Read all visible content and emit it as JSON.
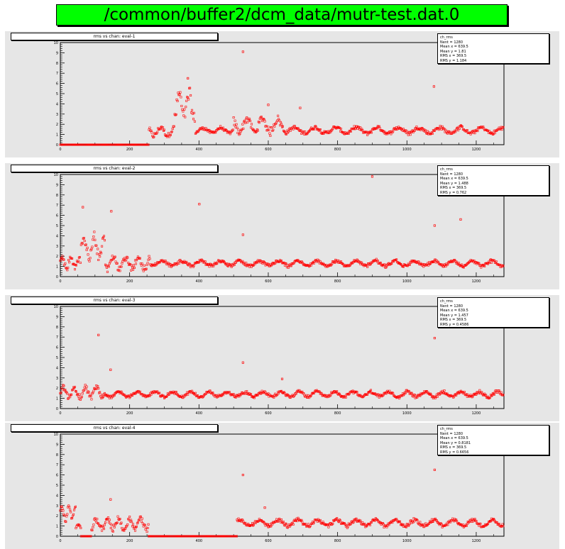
{
  "window": {
    "title": "/common/buffer2/dcm_data/mutr-test.dat.0"
  },
  "colors": {
    "title_bg": "#00ff00",
    "pad_bg": "#e6e6e6",
    "marker": "#ff0000"
  },
  "chart_data": [
    {
      "type": "scatter",
      "title": "rms vs chan: eval-1",
      "stats": [
        "ch_rms",
        "Nent = 1280",
        "Mean x = 639.5",
        "Mean y = 1.81",
        "RMS x = 369.5",
        "RMS y = 1.184"
      ],
      "xlim": [
        0,
        1280
      ],
      "ylim": [
        0,
        10
      ],
      "xticks": [
        0,
        200,
        400,
        600,
        800,
        1000,
        1200
      ],
      "yticks": [
        0,
        1,
        2,
        3,
        4,
        5,
        6,
        7,
        8,
        9,
        10
      ],
      "segments": [
        {
          "x0": 0,
          "x1": 255,
          "base": 0,
          "amp": 0,
          "period": 30
        },
        {
          "x0": 256,
          "x1": 330,
          "base": 1.3,
          "amp": 0.5,
          "period": 20
        },
        {
          "x0": 330,
          "x1": 390,
          "base": 3.8,
          "amp": 1.5,
          "period": 14
        },
        {
          "x0": 390,
          "x1": 500,
          "base": 1.4,
          "amp": 0.3,
          "period": 25
        },
        {
          "x0": 500,
          "x1": 650,
          "base": 1.9,
          "amp": 0.8,
          "period": 22
        },
        {
          "x0": 650,
          "x1": 1280,
          "base": 1.4,
          "amp": 0.35,
          "period": 30
        }
      ],
      "outliers": [
        {
          "x": 527,
          "y": 9.1
        },
        {
          "x": 1078,
          "y": 5.7
        },
        {
          "x": 368,
          "y": 6.5
        },
        {
          "x": 600,
          "y": 3.9
        },
        {
          "x": 692,
          "y": 3.6
        }
      ]
    },
    {
      "type": "scatter",
      "title": "rms vs chan: eval-2",
      "stats": [
        "ch_rms",
        "Nent = 1280",
        "Mean x = 639.5",
        "Mean y = 1.488",
        "RMS x = 369.5",
        "RMS y = 0.762"
      ],
      "xlim": [
        0,
        1280
      ],
      "ylim": [
        0,
        10
      ],
      "xticks": [
        0,
        200,
        400,
        600,
        800,
        1000,
        1200
      ],
      "yticks": [
        0,
        1,
        2,
        3,
        4,
        5,
        6,
        7,
        8,
        9,
        10
      ],
      "segments": [
        {
          "x0": 0,
          "x1": 60,
          "base": 1.4,
          "amp": 0.6,
          "period": 12
        },
        {
          "x0": 60,
          "x1": 130,
          "base": 2.8,
          "amp": 1.3,
          "period": 15
        },
        {
          "x0": 130,
          "x1": 260,
          "base": 1.3,
          "amp": 0.7,
          "period": 18
        },
        {
          "x0": 260,
          "x1": 1280,
          "base": 1.3,
          "amp": 0.3,
          "period": 28
        }
      ],
      "outliers": [
        {
          "x": 65,
          "y": 6.8
        },
        {
          "x": 147,
          "y": 6.4
        },
        {
          "x": 401,
          "y": 7.1
        },
        {
          "x": 527,
          "y": 4.1
        },
        {
          "x": 900,
          "y": 9.8
        },
        {
          "x": 1080,
          "y": 5.0
        },
        {
          "x": 1155,
          "y": 5.6
        }
      ]
    },
    {
      "type": "scatter",
      "title": "rms vs chan: eval-3",
      "stats": [
        "ch_rms",
        "Nent = 1280",
        "Mean x = 639.5",
        "Mean y = 1.457",
        "RMS x = 369.5",
        "RMS y = 0.4586"
      ],
      "xlim": [
        0,
        1280
      ],
      "ylim": [
        0,
        10
      ],
      "xticks": [
        0,
        200,
        400,
        600,
        800,
        1000,
        1200
      ],
      "yticks": [
        0,
        1,
        2,
        3,
        4,
        5,
        6,
        7,
        8,
        9,
        10
      ],
      "segments": [
        {
          "x0": 0,
          "x1": 130,
          "base": 1.6,
          "amp": 0.6,
          "period": 16
        },
        {
          "x0": 130,
          "x1": 1280,
          "base": 1.4,
          "amp": 0.3,
          "period": 26
        }
      ],
      "outliers": [
        {
          "x": 110,
          "y": 7.2
        },
        {
          "x": 145,
          "y": 3.8
        },
        {
          "x": 527,
          "y": 4.5
        },
        {
          "x": 1080,
          "y": 6.9
        },
        {
          "x": 640,
          "y": 2.9
        }
      ]
    },
    {
      "type": "scatter",
      "title": "rms vs chan: eval-4",
      "stats": [
        "ch_rms",
        "Nent = 1280",
        "Mean x = 639.5",
        "Mean y = 0.8181",
        "RMS x = 369.5",
        "RMS y = 0.6656"
      ],
      "xlim": [
        0,
        1280
      ],
      "ylim": [
        0,
        10
      ],
      "xticks": [
        0,
        200,
        400,
        600,
        800,
        1000,
        1200
      ],
      "yticks": [
        0,
        1,
        2,
        3,
        4,
        5,
        6,
        7,
        8,
        9,
        10
      ],
      "segments": [
        {
          "x0": 0,
          "x1": 45,
          "base": 2.3,
          "amp": 0.8,
          "period": 10
        },
        {
          "x0": 45,
          "x1": 60,
          "base": 1.0,
          "amp": 0.2,
          "period": 8
        },
        {
          "x0": 60,
          "x1": 90,
          "base": 0,
          "amp": 0,
          "period": 10
        },
        {
          "x0": 90,
          "x1": 255,
          "base": 1.2,
          "amp": 0.6,
          "period": 16
        },
        {
          "x0": 255,
          "x1": 510,
          "base": 0,
          "amp": 0,
          "period": 30
        },
        {
          "x0": 510,
          "x1": 1280,
          "base": 1.3,
          "amp": 0.35,
          "period": 28
        }
      ],
      "outliers": [
        {
          "x": 145,
          "y": 3.6
        },
        {
          "x": 527,
          "y": 6.0
        },
        {
          "x": 1080,
          "y": 6.5
        },
        {
          "x": 590,
          "y": 2.8
        }
      ]
    }
  ]
}
